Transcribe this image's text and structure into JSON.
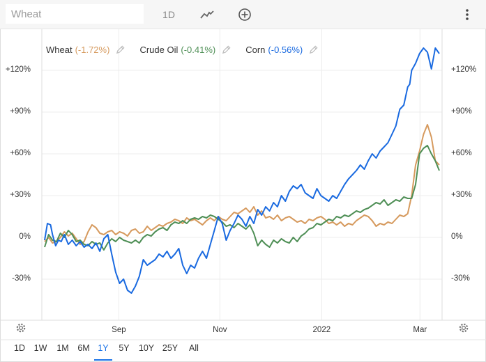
{
  "toolbar": {
    "search_placeholder": "Wheat",
    "interval_label": "1D"
  },
  "colors": {
    "wheat": "#d69a5e",
    "crude_oil": "#4f8f56",
    "corn": "#1a6ae0",
    "grid": "#ececec"
  },
  "legend": [
    {
      "name": "Wheat",
      "change": "(-1.72%)",
      "color": "#d69a5e"
    },
    {
      "name": "Crude Oil",
      "change": "(-0.41%)",
      "color": "#4f8f56"
    },
    {
      "name": "Corn",
      "change": "(-0.56%)",
      "color": "#1a6ae0"
    }
  ],
  "y_ticks": [
    "+120%",
    "+90%",
    "+60%",
    "+30%",
    "0%",
    "-30%"
  ],
  "x_ticks": [
    "Sep",
    "Nov",
    "2022",
    "Mar"
  ],
  "ranges": [
    "1D",
    "1W",
    "1M",
    "6M",
    "1Y",
    "5Y",
    "10Y",
    "25Y",
    "All"
  ],
  "active_range": "1Y",
  "chart_data": {
    "type": "line",
    "ylim": [
      -60,
      140
    ],
    "x_range": [
      0,
      100
    ],
    "x_tick_positions": [
      18.8,
      44.4,
      70.2,
      95.1
    ],
    "y_tick_values": [
      120,
      90,
      60,
      30,
      0,
      -30
    ],
    "series": [
      {
        "name": "Wheat",
        "color": "#d69a5e",
        "points": [
          [
            0,
            -3
          ],
          [
            1,
            0
          ],
          [
            2,
            -4
          ],
          [
            3,
            -3
          ],
          [
            4,
            0
          ],
          [
            5,
            4
          ],
          [
            6,
            1
          ],
          [
            7,
            3
          ],
          [
            8,
            -1
          ],
          [
            9,
            -5
          ],
          [
            10,
            -3
          ],
          [
            11,
            4
          ],
          [
            12,
            9
          ],
          [
            13,
            7
          ],
          [
            14,
            3
          ],
          [
            15,
            2
          ],
          [
            16,
            4
          ],
          [
            17,
            5
          ],
          [
            18,
            2
          ],
          [
            19,
            4
          ],
          [
            20,
            3
          ],
          [
            21,
            1
          ],
          [
            22,
            5
          ],
          [
            23,
            6
          ],
          [
            24,
            3
          ],
          [
            25,
            4
          ],
          [
            26,
            8
          ],
          [
            27,
            5
          ],
          [
            28,
            7
          ],
          [
            29,
            9
          ],
          [
            30,
            8
          ],
          [
            31,
            10
          ],
          [
            32,
            11
          ],
          [
            33,
            13
          ],
          [
            34,
            12
          ],
          [
            35,
            10
          ],
          [
            36,
            14
          ],
          [
            37,
            12
          ],
          [
            38,
            13
          ],
          [
            39,
            11
          ],
          [
            40,
            9
          ],
          [
            41,
            12
          ],
          [
            42,
            14
          ],
          [
            43,
            12
          ],
          [
            44,
            15
          ],
          [
            45,
            13
          ],
          [
            46,
            12
          ],
          [
            47,
            15
          ],
          [
            48,
            18
          ],
          [
            49,
            17
          ],
          [
            50,
            19
          ],
          [
            51,
            21
          ],
          [
            52,
            18
          ],
          [
            53,
            22
          ],
          [
            54,
            16
          ],
          [
            55,
            19
          ],
          [
            56,
            14
          ],
          [
            57,
            15
          ],
          [
            58,
            13
          ],
          [
            59,
            16
          ],
          [
            60,
            12
          ],
          [
            61,
            14
          ],
          [
            62,
            15
          ],
          [
            63,
            13
          ],
          [
            64,
            11
          ],
          [
            65,
            12
          ],
          [
            66,
            10
          ],
          [
            67,
            13
          ],
          [
            68,
            12
          ],
          [
            69,
            14
          ],
          [
            70,
            15
          ],
          [
            71,
            13
          ],
          [
            72,
            10
          ],
          [
            73,
            11
          ],
          [
            74,
            9
          ],
          [
            75,
            11
          ],
          [
            76,
            8
          ],
          [
            77,
            10
          ],
          [
            78,
            9
          ],
          [
            79,
            12
          ],
          [
            80,
            14
          ],
          [
            81,
            16
          ],
          [
            82,
            15
          ],
          [
            83,
            12
          ],
          [
            84,
            8
          ],
          [
            85,
            10
          ],
          [
            86,
            9
          ],
          [
            87,
            11
          ],
          [
            88,
            10
          ],
          [
            89,
            13
          ],
          [
            90,
            16
          ],
          [
            91,
            15
          ],
          [
            92,
            17
          ],
          [
            93,
            30
          ],
          [
            94,
            52
          ],
          [
            95,
            62
          ],
          [
            96,
            74
          ],
          [
            97,
            81
          ],
          [
            98,
            72
          ],
          [
            99,
            55
          ],
          [
            100,
            52
          ]
        ]
      },
      {
        "name": "Crude Oil",
        "color": "#4f8f56",
        "points": [
          [
            0,
            -7
          ],
          [
            1,
            2
          ],
          [
            2,
            -2
          ],
          [
            3,
            -3
          ],
          [
            4,
            3
          ],
          [
            5,
            0
          ],
          [
            6,
            5
          ],
          [
            7,
            2
          ],
          [
            8,
            -3
          ],
          [
            9,
            -2
          ],
          [
            10,
            -5
          ],
          [
            11,
            -6
          ],
          [
            12,
            -3
          ],
          [
            13,
            -5
          ],
          [
            14,
            -4
          ],
          [
            15,
            -9
          ],
          [
            16,
            -4
          ],
          [
            17,
            -1
          ],
          [
            18,
            -3
          ],
          [
            19,
            0
          ],
          [
            20,
            -2
          ],
          [
            21,
            -3
          ],
          [
            22,
            -4
          ],
          [
            23,
            -2
          ],
          [
            24,
            -4
          ],
          [
            25,
            0
          ],
          [
            26,
            2
          ],
          [
            27,
            1
          ],
          [
            28,
            4
          ],
          [
            29,
            6
          ],
          [
            30,
            7
          ],
          [
            31,
            5
          ],
          [
            32,
            9
          ],
          [
            33,
            11
          ],
          [
            34,
            10
          ],
          [
            35,
            12
          ],
          [
            36,
            10
          ],
          [
            37,
            13
          ],
          [
            38,
            14
          ],
          [
            39,
            13
          ],
          [
            40,
            15
          ],
          [
            41,
            14
          ],
          [
            42,
            16
          ],
          [
            43,
            15
          ],
          [
            44,
            13
          ],
          [
            45,
            11
          ],
          [
            46,
            8
          ],
          [
            47,
            9
          ],
          [
            48,
            7
          ],
          [
            49,
            10
          ],
          [
            50,
            8
          ],
          [
            51,
            6
          ],
          [
            52,
            9
          ],
          [
            53,
            3
          ],
          [
            54,
            -6
          ],
          [
            55,
            -2
          ],
          [
            56,
            -5
          ],
          [
            57,
            -7
          ],
          [
            58,
            -2
          ],
          [
            59,
            -4
          ],
          [
            60,
            -1
          ],
          [
            61,
            -3
          ],
          [
            62,
            -4
          ],
          [
            63,
            0
          ],
          [
            64,
            -3
          ],
          [
            65,
            1
          ],
          [
            66,
            3
          ],
          [
            67,
            6
          ],
          [
            68,
            7
          ],
          [
            69,
            10
          ],
          [
            70,
            9
          ],
          [
            71,
            11
          ],
          [
            72,
            13
          ],
          [
            73,
            12
          ],
          [
            74,
            15
          ],
          [
            75,
            14
          ],
          [
            76,
            16
          ],
          [
            77,
            15
          ],
          [
            78,
            17
          ],
          [
            79,
            19
          ],
          [
            80,
            18
          ],
          [
            81,
            20
          ],
          [
            82,
            21
          ],
          [
            83,
            23
          ],
          [
            84,
            25
          ],
          [
            85,
            24
          ],
          [
            86,
            27
          ],
          [
            87,
            23
          ],
          [
            88,
            25
          ],
          [
            89,
            27
          ],
          [
            90,
            26
          ],
          [
            91,
            29
          ],
          [
            92,
            28
          ],
          [
            93,
            28
          ],
          [
            94,
            38
          ],
          [
            95,
            60
          ],
          [
            96,
            64
          ],
          [
            97,
            66
          ],
          [
            98,
            60
          ],
          [
            99,
            55
          ],
          [
            100,
            48
          ]
        ]
      },
      {
        "name": "Corn",
        "color": "#1a6ae0",
        "points": [
          [
            0,
            -2
          ],
          [
            0.7,
            10
          ],
          [
            1.5,
            9
          ],
          [
            2,
            2
          ],
          [
            2.8,
            -6
          ],
          [
            3.5,
            -2
          ],
          [
            4.2,
            -3
          ],
          [
            5,
            2
          ],
          [
            6,
            -5
          ],
          [
            7,
            -2
          ],
          [
            8,
            -6
          ],
          [
            9,
            -3
          ],
          [
            10,
            -7
          ],
          [
            11,
            -5
          ],
          [
            12,
            -8
          ],
          [
            13,
            -4
          ],
          [
            14,
            -10
          ],
          [
            15,
            -1
          ],
          [
            16,
            2
          ],
          [
            17,
            -12
          ],
          [
            18,
            -25
          ],
          [
            19,
            -33
          ],
          [
            20,
            -30
          ],
          [
            21,
            -38
          ],
          [
            22,
            -40
          ],
          [
            23,
            -35
          ],
          [
            24,
            -28
          ],
          [
            25,
            -16
          ],
          [
            26,
            -20
          ],
          [
            27,
            -18
          ],
          [
            28,
            -16
          ],
          [
            29,
            -12
          ],
          [
            30,
            -14
          ],
          [
            31,
            -10
          ],
          [
            32,
            -15
          ],
          [
            33,
            -12
          ],
          [
            34,
            -8
          ],
          [
            35,
            -20
          ],
          [
            36,
            -26
          ],
          [
            37,
            -20
          ],
          [
            38,
            -22
          ],
          [
            39,
            -15
          ],
          [
            40,
            -10
          ],
          [
            41,
            -15
          ],
          [
            42,
            -5
          ],
          [
            43,
            5
          ],
          [
            44,
            15
          ],
          [
            45,
            10
          ],
          [
            46,
            -2
          ],
          [
            47,
            5
          ],
          [
            48,
            10
          ],
          [
            49,
            16
          ],
          [
            50,
            13
          ],
          [
            51,
            8
          ],
          [
            52,
            15
          ],
          [
            53,
            10
          ],
          [
            54,
            20
          ],
          [
            55,
            16
          ],
          [
            56,
            22
          ],
          [
            57,
            19
          ],
          [
            58,
            25
          ],
          [
            59,
            22
          ],
          [
            60,
            30
          ],
          [
            61,
            26
          ],
          [
            62,
            33
          ],
          [
            63,
            37
          ],
          [
            64,
            35
          ],
          [
            65,
            38
          ],
          [
            66,
            32
          ],
          [
            67,
            30
          ],
          [
            68,
            28
          ],
          [
            69,
            35
          ],
          [
            70,
            30
          ],
          [
            71,
            28
          ],
          [
            72,
            26
          ],
          [
            73,
            30
          ],
          [
            74,
            28
          ],
          [
            75,
            33
          ],
          [
            76,
            38
          ],
          [
            77,
            42
          ],
          [
            78,
            45
          ],
          [
            79,
            48
          ],
          [
            80,
            52
          ],
          [
            81,
            49
          ],
          [
            82,
            55
          ],
          [
            83,
            60
          ],
          [
            84,
            57
          ],
          [
            85,
            62
          ],
          [
            86,
            65
          ],
          [
            87,
            68
          ],
          [
            88,
            74
          ],
          [
            89,
            80
          ],
          [
            90,
            92
          ],
          [
            91,
            95
          ],
          [
            92,
            108
          ],
          [
            92.5,
            110
          ],
          [
            93,
            120
          ],
          [
            94,
            125
          ],
          [
            95,
            132
          ],
          [
            96,
            136
          ],
          [
            97,
            133
          ],
          [
            98,
            121
          ],
          [
            99,
            136
          ],
          [
            100,
            132
          ]
        ]
      }
    ]
  }
}
